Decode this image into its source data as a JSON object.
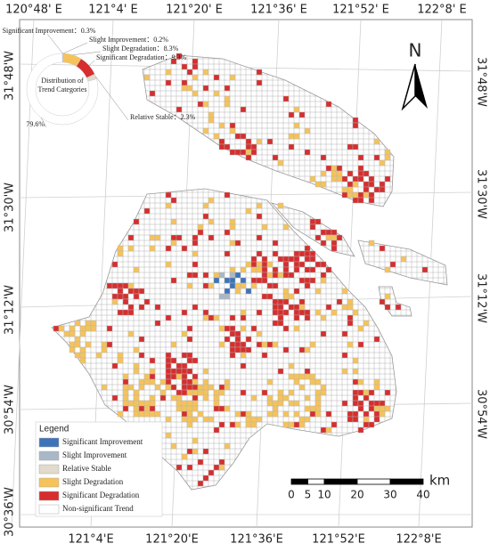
{
  "map_frame": {
    "top_labels": [
      "120°48' E",
      "121°4' E",
      "121°20' E",
      "121°36' E",
      "121°52' E",
      "122°8' E"
    ],
    "bottom_labels": [
      "121°4'E",
      "121°20'E",
      "121°36'E",
      "121°52'E",
      "122°8'E"
    ],
    "left_labels": [
      "31°48'W",
      "31°30'W",
      "31°12'W",
      "30°54'W",
      "30°36'W"
    ],
    "right_labels": [
      "31°48'W",
      "31°30'W",
      "31°12'W",
      "30°54'W"
    ]
  },
  "north_arrow": {
    "label": "N"
  },
  "scale_bar": {
    "ticks": [
      0,
      5,
      10,
      20,
      30,
      40
    ],
    "unit": "km"
  },
  "legend": {
    "title": "Legend",
    "items": [
      {
        "name": "Significant Improvement",
        "color": "#3f73b8"
      },
      {
        "name": "Slight Improvement",
        "color": "#a9b8c6"
      },
      {
        "name": "Relative Stable",
        "color": "#e2dacb"
      },
      {
        "name": "Slight Degradation",
        "color": "#f5c35a"
      },
      {
        "name": "Significant Degradation",
        "color": "#d62e2e"
      },
      {
        "name": "Non-significant Trend",
        "color": "#ffffff"
      }
    ]
  },
  "chart_data": {
    "type": "pie",
    "title": "Distribution of Trend Categories",
    "categories": [
      "Significant Improvement",
      "Slight Improvement",
      "Slight Degradation",
      "Significant Degradation",
      "Relative Stable",
      null
    ],
    "values": [
      0.3,
      0.2,
      8.3,
      9.3,
      2.3,
      79.6
    ],
    "value_labels": [
      "0.3%",
      "0.2%",
      "8.3%",
      "9.3%",
      "2.3%",
      "79.6%"
    ],
    "colors": [
      "#3f73b8",
      "#a9b8c6",
      "#f5c35a",
      "#d62e2e",
      "#e2dacb",
      "#ffffff"
    ],
    "separator": "："
  }
}
